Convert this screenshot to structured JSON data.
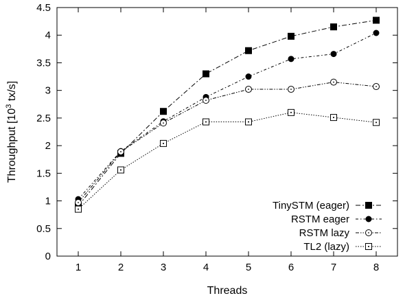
{
  "chart_data": {
    "type": "line",
    "x": [
      1,
      2,
      3,
      4,
      5,
      6,
      7,
      8
    ],
    "xlabel": "Threads",
    "ylabel_prefix": "Throughput [10",
    "ylabel_exp": "3",
    "ylabel_suffix": " tx/s]",
    "xlim": [
      0.5,
      8.5
    ],
    "ylim": [
      0,
      4.5
    ],
    "xticks": [
      "1",
      "2",
      "3",
      "4",
      "5",
      "6",
      "7",
      "8"
    ],
    "yticks": [
      "0",
      "0.5",
      "1",
      "1.5",
      "2",
      "2.5",
      "3",
      "3.5",
      "4",
      "4.5"
    ],
    "grid": false,
    "legend_position": "bottom-right",
    "series": [
      {
        "name": "TinySTM (eager)",
        "marker": "filled-square",
        "dash": "dash-dot",
        "values": [
          0.91,
          1.86,
          2.62,
          3.3,
          3.72,
          3.98,
          4.15,
          4.27
        ]
      },
      {
        "name": "RSTM eager",
        "marker": "filled-circle",
        "dash": "dot-dash",
        "values": [
          1.03,
          1.9,
          2.44,
          2.88,
          3.25,
          3.57,
          3.66,
          4.04
        ]
      },
      {
        "name": "RSTM lazy",
        "marker": "open-circle",
        "dash": "dash-dot-dot",
        "values": [
          0.97,
          1.89,
          2.41,
          2.82,
          3.02,
          3.02,
          3.15,
          3.07
        ]
      },
      {
        "name": "TL2 (lazy)",
        "marker": "open-square",
        "dash": "dotted",
        "values": [
          0.85,
          1.56,
          2.04,
          2.43,
          2.43,
          2.6,
          2.51,
          2.42
        ]
      }
    ],
    "colors": {
      "line": "#000000",
      "background": "#ffffff"
    }
  }
}
